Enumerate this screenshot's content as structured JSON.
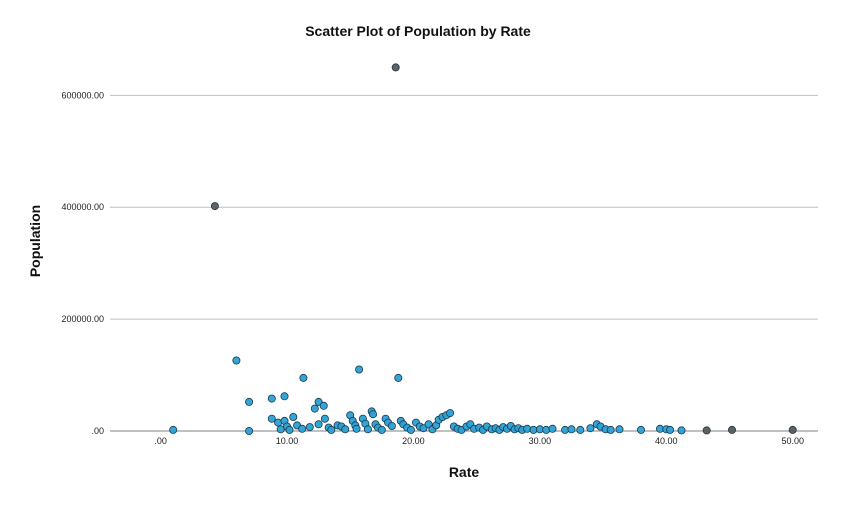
{
  "chart_data": {
    "type": "scatter",
    "title": "Scatter Plot of Population by Rate",
    "xlabel": "Rate",
    "ylabel": "Population",
    "xlim": [
      -4,
      52
    ],
    "ylim": [
      0,
      690000
    ],
    "x_ticks": [
      0,
      10,
      20,
      30,
      40,
      50
    ],
    "x_tick_labels": [
      ".00",
      "10.00",
      "20.00",
      "30.00",
      "40.00",
      "50.00"
    ],
    "y_ticks": [
      0,
      200000,
      400000,
      600000
    ],
    "y_tick_labels": [
      ".00",
      "200000.00",
      "400000.00",
      "600000.00"
    ],
    "grid": "horizontal",
    "legend": "none",
    "colors": {
      "point_fill": "#2aa0d6",
      "point_stroke": "#1a3a4a",
      "outlier_fill": "#5a5a5a",
      "gridline": "#bfbfbf",
      "axis": "#808080"
    },
    "series": [
      {
        "points": [
          [
            1,
            2000
          ],
          [
            4.3,
            402000
          ],
          [
            6,
            126000
          ],
          [
            7,
            52000
          ],
          [
            7,
            0
          ],
          [
            8.8,
            58000
          ],
          [
            8.8,
            22000
          ],
          [
            9.3,
            15000
          ],
          [
            9.5,
            3000
          ],
          [
            9.8,
            62000
          ],
          [
            9.8,
            18000
          ],
          [
            10,
            8000
          ],
          [
            10.2,
            2000
          ],
          [
            10.5,
            25000
          ],
          [
            10.8,
            10000
          ],
          [
            11.3,
            95000
          ],
          [
            11.2,
            4000
          ],
          [
            11.8,
            7000
          ],
          [
            12.2,
            40000
          ],
          [
            12.5,
            52000
          ],
          [
            12.5,
            12000
          ],
          [
            12.9,
            45000
          ],
          [
            13,
            22000
          ],
          [
            13.3,
            6000
          ],
          [
            13.5,
            2000
          ],
          [
            14,
            10000
          ],
          [
            14.3,
            8000
          ],
          [
            14.6,
            3000
          ],
          [
            15,
            28000
          ],
          [
            15.2,
            18000
          ],
          [
            15.4,
            10000
          ],
          [
            15.5,
            4000
          ],
          [
            15.7,
            110000
          ],
          [
            16,
            22000
          ],
          [
            16.2,
            13000
          ],
          [
            16.4,
            3000
          ],
          [
            16.7,
            35000
          ],
          [
            16.8,
            30000
          ],
          [
            17,
            12000
          ],
          [
            17.2,
            6000
          ],
          [
            17.5,
            2000
          ],
          [
            17.8,
            22000
          ],
          [
            18,
            15000
          ],
          [
            18.3,
            9000
          ],
          [
            18.6,
            650000
          ],
          [
            18.8,
            95000
          ],
          [
            19,
            18000
          ],
          [
            19.2,
            12000
          ],
          [
            19.5,
            6000
          ],
          [
            19.8,
            2000
          ],
          [
            20.2,
            15000
          ],
          [
            20.5,
            8000
          ],
          [
            20.8,
            5000
          ],
          [
            21.2,
            12000
          ],
          [
            21.5,
            3000
          ],
          [
            21.8,
            10000
          ],
          [
            22,
            20000
          ],
          [
            22.3,
            25000
          ],
          [
            22.6,
            28000
          ],
          [
            22.9,
            32000
          ],
          [
            23.2,
            8000
          ],
          [
            23.5,
            4000
          ],
          [
            23.8,
            2000
          ],
          [
            24.2,
            8000
          ],
          [
            24.5,
            12000
          ],
          [
            24.8,
            4000
          ],
          [
            25.2,
            6000
          ],
          [
            25.5,
            2000
          ],
          [
            25.8,
            8000
          ],
          [
            26.2,
            3000
          ],
          [
            26.5,
            5000
          ],
          [
            26.8,
            2000
          ],
          [
            27.1,
            7000
          ],
          [
            27.4,
            4000
          ],
          [
            27.7,
            9000
          ],
          [
            28,
            3000
          ],
          [
            28.3,
            5000
          ],
          [
            28.6,
            2000
          ],
          [
            29,
            4000
          ],
          [
            29.5,
            2000
          ],
          [
            30,
            3000
          ],
          [
            30.5,
            2000
          ],
          [
            31,
            4000
          ],
          [
            32,
            2000
          ],
          [
            32.5,
            3000
          ],
          [
            33.2,
            2000
          ],
          [
            34,
            5000
          ],
          [
            34.5,
            12000
          ],
          [
            34.8,
            8000
          ],
          [
            35.2,
            3000
          ],
          [
            35.6,
            2000
          ],
          [
            36.3,
            3000
          ],
          [
            38,
            2000
          ],
          [
            39.5,
            4000
          ],
          [
            40,
            3000
          ],
          [
            40.3,
            2000
          ],
          [
            41.2,
            1000
          ],
          [
            43.2,
            1000
          ],
          [
            45.2,
            2000
          ],
          [
            50,
            2000
          ]
        ]
      }
    ]
  }
}
